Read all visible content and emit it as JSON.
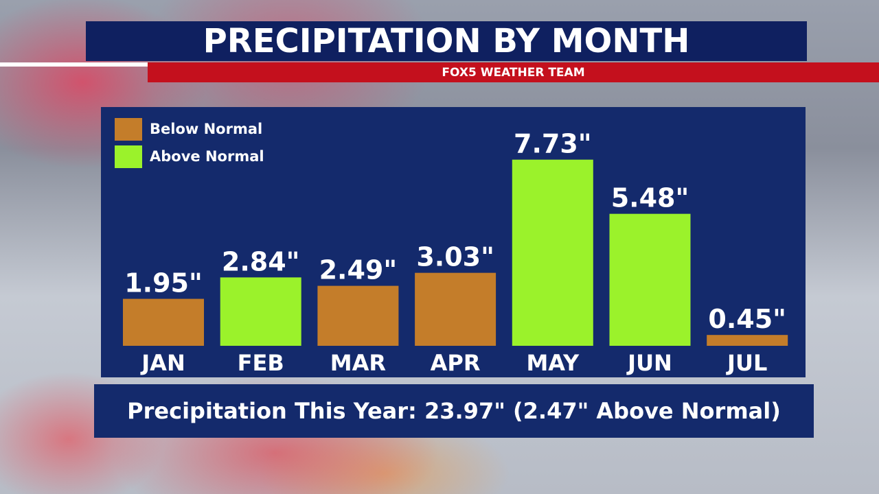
{
  "header": {
    "title": "PRECIPITATION BY MONTH",
    "subtitle": "FOX5 WEATHER TEAM"
  },
  "legend": {
    "items": [
      {
        "label": "Below Normal",
        "color": "#c47d2a"
      },
      {
        "label": "Above Normal",
        "color": "#9bf22b"
      }
    ]
  },
  "chart_data": {
    "type": "bar",
    "categories": [
      "JAN",
      "FEB",
      "MAR",
      "APR",
      "MAY",
      "JUN",
      "JUL"
    ],
    "values": [
      1.95,
      2.84,
      2.49,
      3.03,
      7.73,
      5.48,
      0.45
    ],
    "labels": [
      "1.95\"",
      "2.84\"",
      "2.49\"",
      "3.03\"",
      "7.73\"",
      "5.48\"",
      "0.45\""
    ],
    "status": [
      "below",
      "above",
      "below",
      "below",
      "above",
      "above",
      "below"
    ],
    "colors": {
      "below": "#c47d2a",
      "above": "#9bf22b"
    },
    "grid": false,
    "legend_position": "top-left"
  },
  "summary": {
    "text": "Precipitation This Year: 23.97\" (2.47\" Above Normal)"
  }
}
